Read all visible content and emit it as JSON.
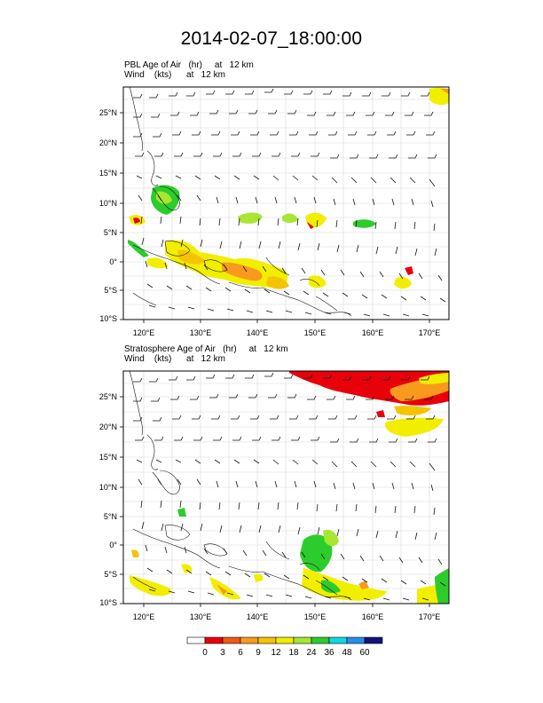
{
  "title": "2014-02-07_18:00:00",
  "panels": [
    {
      "name": "pbl",
      "line1": "PBL Age of Air   (hr)     at   12 km",
      "line2": "Wind    (kts)      at   12 km",
      "lat_labels": [
        "25°N",
        "20°N",
        "15°N",
        "10°N",
        "5°N",
        "0°",
        "5°S",
        "10°S"
      ],
      "lon_labels": [
        "120°E",
        "130°E",
        "140°E",
        "150°E",
        "160°E",
        "170°E"
      ]
    },
    {
      "name": "strat",
      "line1": "Stratosphere Age of Air   (hr)     at   12 km",
      "line2": "Wind    (kts)      at   12 km",
      "lat_labels": [
        "25°N",
        "20°N",
        "15°N",
        "10°N",
        "5°N",
        "0°",
        "5°S",
        "10°S"
      ],
      "lon_labels": [
        "120°E",
        "130°E",
        "140°E",
        "150°E",
        "160°E",
        "170°E"
      ]
    }
  ],
  "colorbar": {
    "labels": [
      "0",
      "3",
      "6",
      "9",
      "12",
      "18",
      "24",
      "36",
      "48",
      "60"
    ],
    "colors": [
      "#ffffff",
      "#e8000b",
      "#f05a12",
      "#f79a1e",
      "#f5c400",
      "#f2ee00",
      "#a8e632",
      "#2ccc2c",
      "#12d6e6",
      "#2a8ee8",
      "#13127e"
    ]
  }
}
